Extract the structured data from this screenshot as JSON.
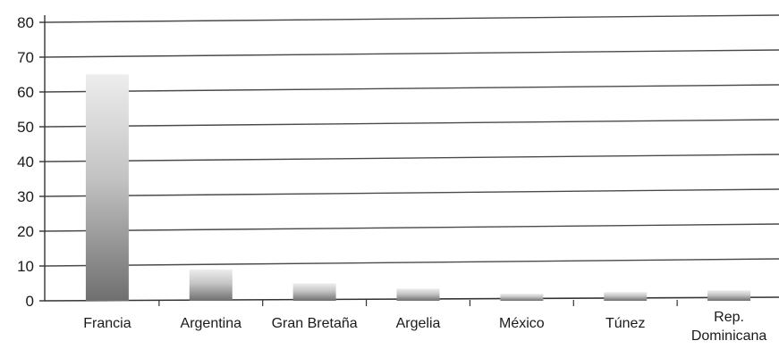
{
  "chart_data": {
    "type": "bar",
    "categories": [
      "Francia",
      "Argentina",
      "Gran Bretaña",
      "Argelia",
      "México",
      "Túnez",
      "Rep. Dominicana"
    ],
    "category_lines": [
      [
        "Francia"
      ],
      [
        "Argentina"
      ],
      [
        "Gran Bretaña"
      ],
      [
        "Argelia"
      ],
      [
        "México"
      ],
      [
        "Túnez"
      ],
      [
        "Rep.",
        "Dominicana"
      ]
    ],
    "values": [
      65,
      9,
      5,
      3.5,
      2,
      2.5,
      3
    ],
    "title": "",
    "xlabel": "",
    "ylabel": "",
    "ylim": [
      0,
      80
    ],
    "yticks": [
      "0",
      "10",
      "20",
      "30",
      "40",
      "50",
      "60",
      "70",
      "80"
    ],
    "grid": true,
    "legend": "none",
    "colors": {
      "bar_top": "#ededed",
      "bar_mid": "#c4c4c4",
      "bar_bottom": "#6f6f6f",
      "grid": "#4a4a4a",
      "axis": "#333333"
    }
  }
}
